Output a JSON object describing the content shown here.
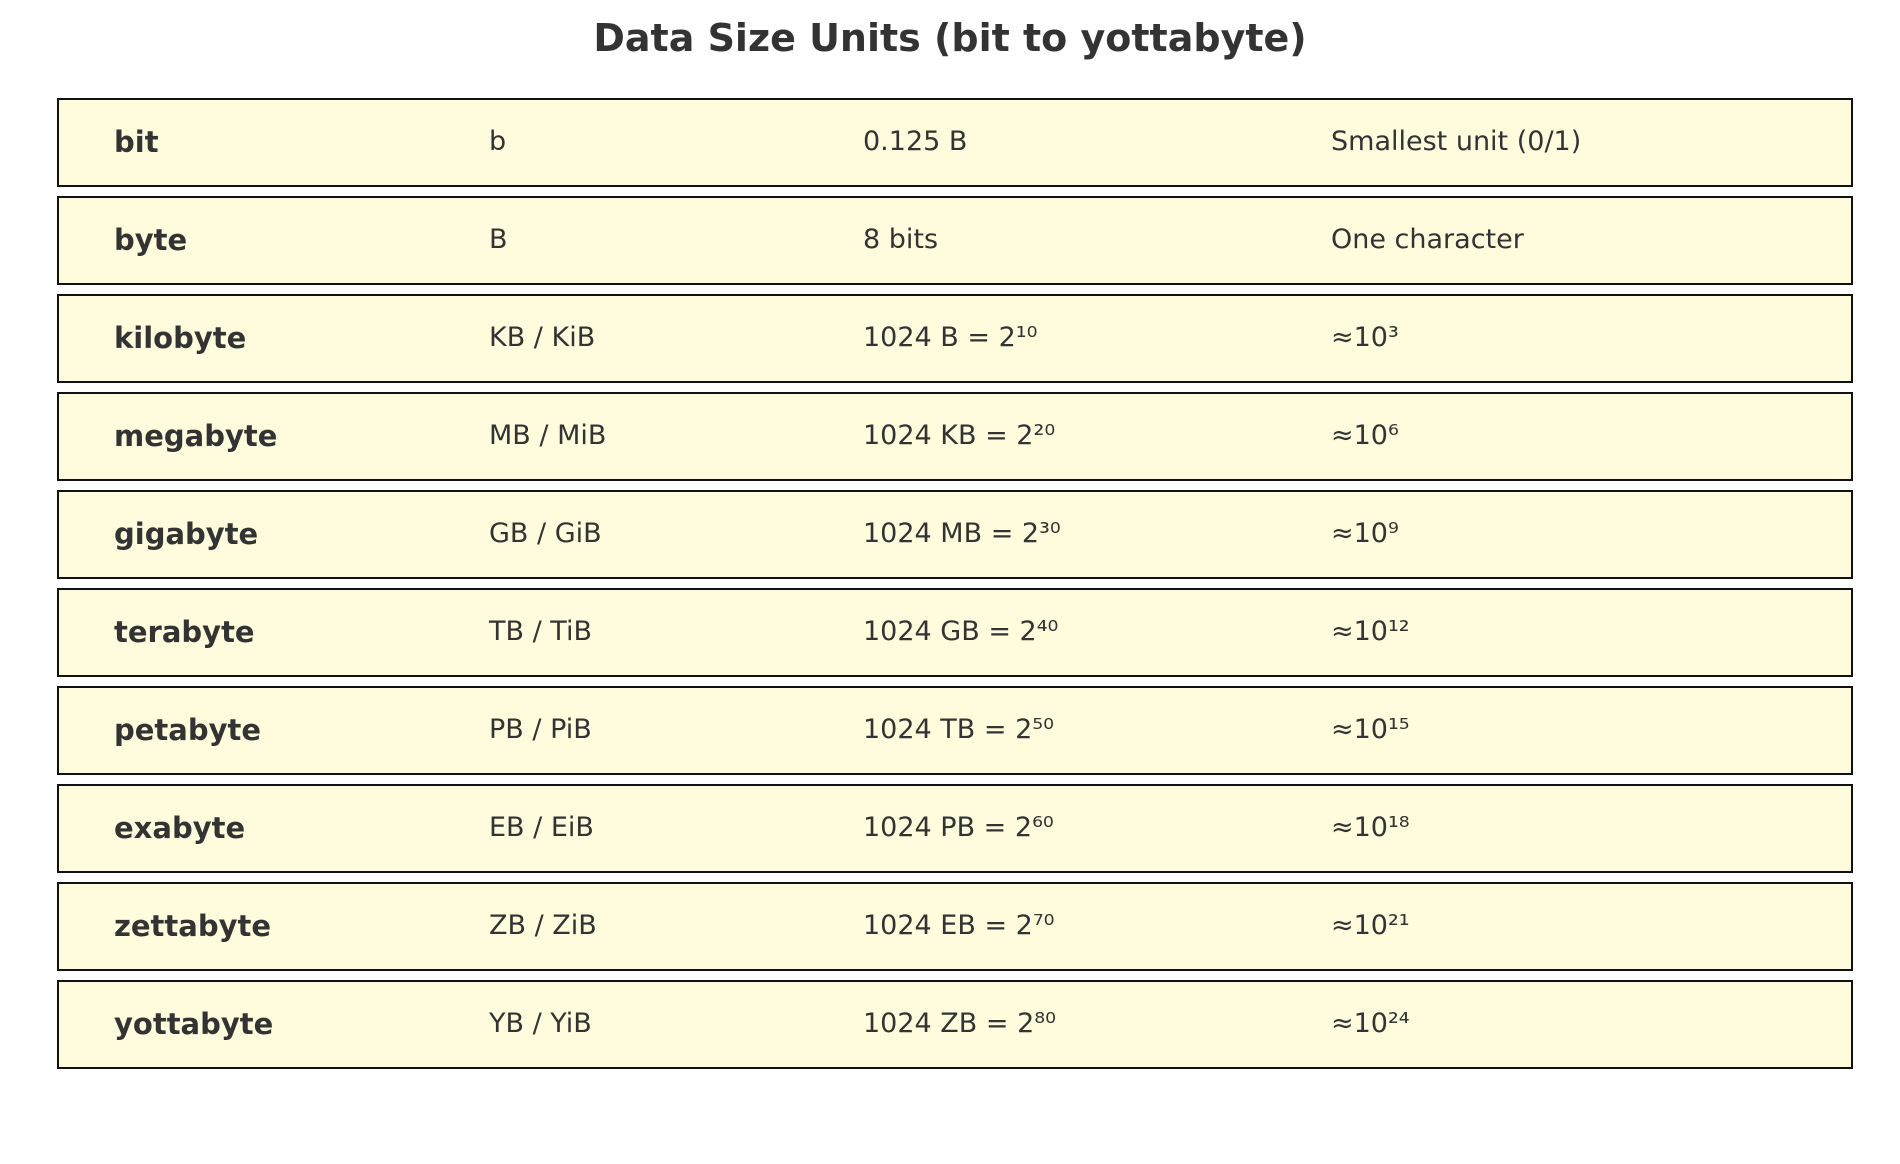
{
  "title": "Data Size Units (bit to yottabyte)",
  "rows": [
    {
      "name": "bit",
      "abbr": "b",
      "size": "0.125 B",
      "note": "Smallest unit (0/1)"
    },
    {
      "name": "byte",
      "abbr": "B",
      "size": "8 bits",
      "note": "One character"
    },
    {
      "name": "kilobyte",
      "abbr": "KB / KiB",
      "size": "1024 B = 2¹⁰",
      "note": "≈10³"
    },
    {
      "name": "megabyte",
      "abbr": "MB / MiB",
      "size": "1024 KB = 2²⁰",
      "note": "≈10⁶"
    },
    {
      "name": "gigabyte",
      "abbr": "GB / GiB",
      "size": "1024 MB = 2³⁰",
      "note": "≈10⁹"
    },
    {
      "name": "terabyte",
      "abbr": "TB / TiB",
      "size": "1024 GB = 2⁴⁰",
      "note": "≈10¹²"
    },
    {
      "name": "petabyte",
      "abbr": "PB / PiB",
      "size": "1024 TB = 2⁵⁰",
      "note": "≈10¹⁵"
    },
    {
      "name": "exabyte",
      "abbr": "EB / EiB",
      "size": "1024 PB = 2⁶⁰",
      "note": "≈10¹⁸"
    },
    {
      "name": "zettabyte",
      "abbr": "ZB / ZiB",
      "size": "1024 EB = 2⁷⁰",
      "note": "≈10²¹"
    },
    {
      "name": "yottabyte",
      "abbr": "YB / YiB",
      "size": "1024 ZB = 2⁸⁰",
      "note": "≈10²⁴"
    }
  ],
  "colors": {
    "row_background": "#fefcdc",
    "row_border": "#111111",
    "text": "#333333"
  }
}
